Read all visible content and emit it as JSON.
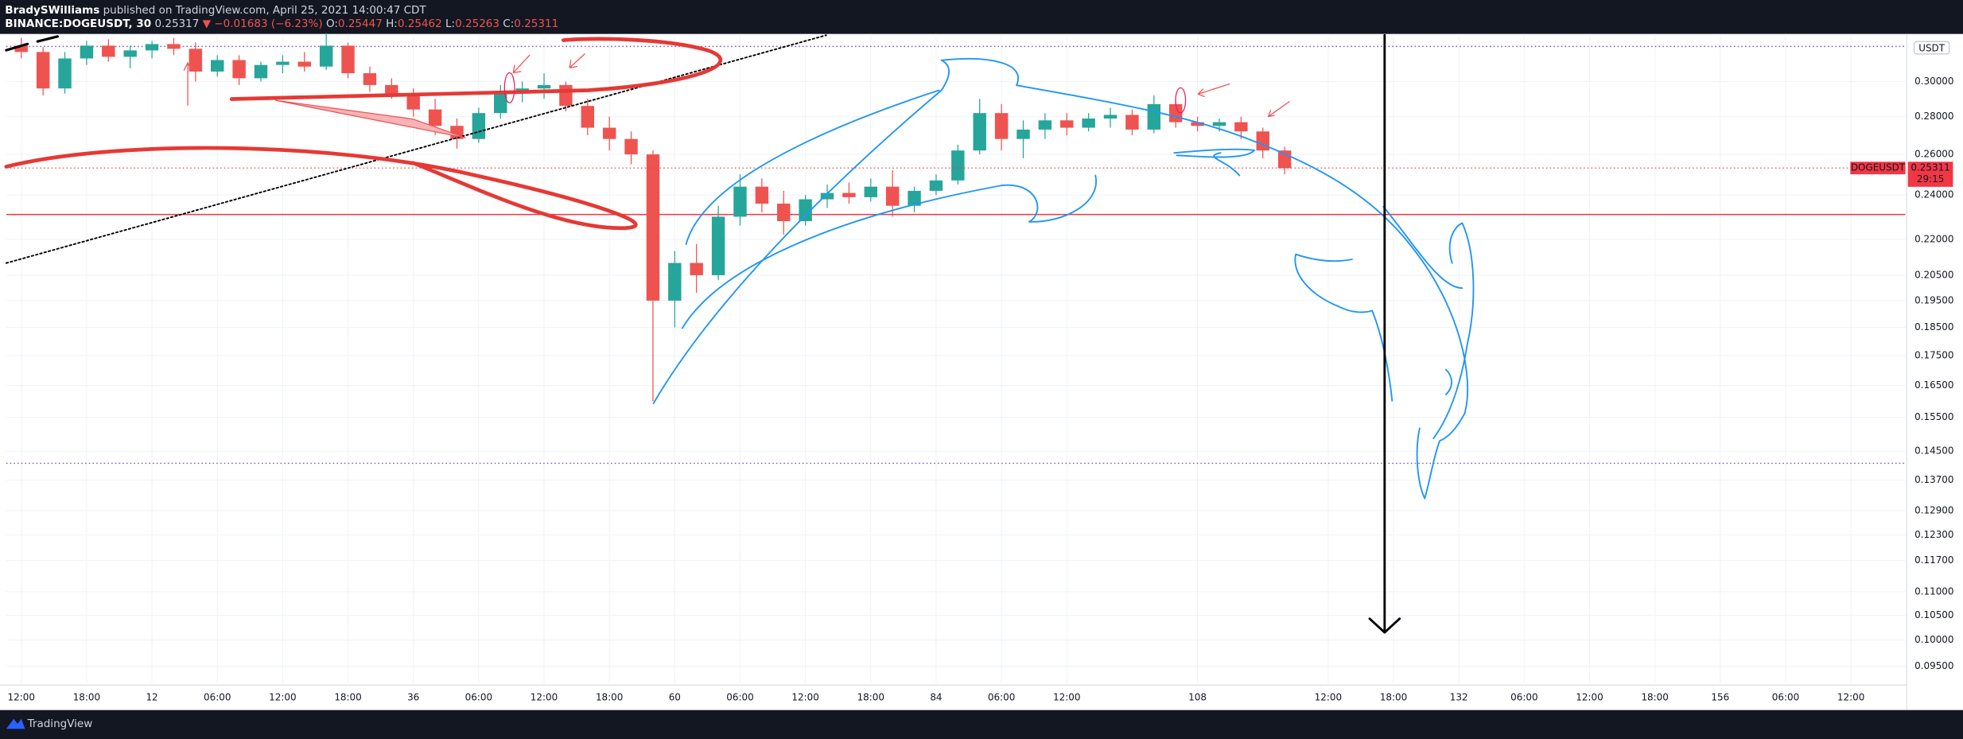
{
  "header": {
    "author": "BradySWilliams",
    "published": "published on TradingView.com, April 25, 2021 14:00:47 CDT",
    "symbol": "BINANCE:DOGEUSDT, 30",
    "price": "0.25317",
    "change": "▼ −0.01683 (−6.23%)",
    "ohlc": [
      {
        "label": "O:",
        "value": "0.25447"
      },
      {
        "label": "H:",
        "value": "0.25462"
      },
      {
        "label": "L:",
        "value": "0.25263"
      },
      {
        "label": "C:",
        "value": "0.25311"
      }
    ]
  },
  "chart_data": {
    "type": "candlestick",
    "log_scale": true,
    "grid": true,
    "up_color": "#26a69a",
    "down_color": "#ef5350",
    "axis_unit": "USDT",
    "x": [
      0,
      2,
      4,
      6,
      8,
      10,
      12,
      14,
      16,
      18,
      20,
      22,
      24,
      26,
      28,
      30,
      32,
      34,
      36,
      38,
      40,
      42,
      44,
      46,
      48,
      50,
      52,
      54,
      56,
      58,
      60,
      62,
      64,
      66,
      68,
      70,
      72,
      74,
      76,
      78,
      80,
      82,
      84,
      86,
      88,
      90,
      92,
      94,
      96,
      98,
      100,
      102,
      104,
      106,
      108,
      110,
      112,
      114,
      116
    ],
    "candles": [
      [
        0.322,
        0.327,
        0.314,
        0.318
      ],
      [
        0.318,
        0.321,
        0.292,
        0.296
      ],
      [
        0.296,
        0.318,
        0.293,
        0.314
      ],
      [
        0.314,
        0.325,
        0.31,
        0.322
      ],
      [
        0.322,
        0.326,
        0.312,
        0.315
      ],
      [
        0.315,
        0.322,
        0.308,
        0.319
      ],
      [
        0.319,
        0.325,
        0.314,
        0.323
      ],
      [
        0.323,
        0.327,
        0.316,
        0.32
      ],
      [
        0.32,
        0.324,
        0.3,
        0.306
      ],
      [
        0.306,
        0.316,
        0.303,
        0.313
      ],
      [
        0.313,
        0.316,
        0.298,
        0.302
      ],
      [
        0.302,
        0.312,
        0.3,
        0.31
      ],
      [
        0.31,
        0.316,
        0.305,
        0.312
      ],
      [
        0.312,
        0.318,
        0.306,
        0.309
      ],
      [
        0.309,
        0.33,
        0.307,
        0.322
      ],
      [
        0.322,
        0.324,
        0.302,
        0.305
      ],
      [
        0.305,
        0.309,
        0.294,
        0.298
      ],
      [
        0.298,
        0.302,
        0.29,
        0.293
      ],
      [
        0.293,
        0.296,
        0.28,
        0.284
      ],
      [
        0.284,
        0.29,
        0.27,
        0.275
      ],
      [
        0.275,
        0.279,
        0.263,
        0.268
      ],
      [
        0.268,
        0.285,
        0.266,
        0.282
      ],
      [
        0.282,
        0.298,
        0.279,
        0.293
      ],
      [
        0.293,
        0.3,
        0.288,
        0.296
      ],
      [
        0.296,
        0.305,
        0.29,
        0.298
      ],
      [
        0.298,
        0.3,
        0.283,
        0.286
      ],
      [
        0.286,
        0.29,
        0.27,
        0.274
      ],
      [
        0.274,
        0.28,
        0.262,
        0.268
      ],
      [
        0.268,
        0.272,
        0.255,
        0.26
      ],
      [
        0.26,
        0.262,
        0.16,
        0.195
      ],
      [
        0.195,
        0.215,
        0.185,
        0.21
      ],
      [
        0.21,
        0.218,
        0.198,
        0.205
      ],
      [
        0.205,
        0.235,
        0.203,
        0.23
      ],
      [
        0.23,
        0.25,
        0.226,
        0.244
      ],
      [
        0.244,
        0.248,
        0.232,
        0.236
      ],
      [
        0.236,
        0.242,
        0.222,
        0.228
      ],
      [
        0.228,
        0.24,
        0.226,
        0.238
      ],
      [
        0.238,
        0.245,
        0.234,
        0.241
      ],
      [
        0.241,
        0.246,
        0.236,
        0.239
      ],
      [
        0.239,
        0.248,
        0.237,
        0.244
      ],
      [
        0.244,
        0.252,
        0.23,
        0.235
      ],
      [
        0.235,
        0.244,
        0.232,
        0.242
      ],
      [
        0.242,
        0.25,
        0.24,
        0.247
      ],
      [
        0.247,
        0.265,
        0.245,
        0.262
      ],
      [
        0.262,
        0.29,
        0.26,
        0.282
      ],
      [
        0.282,
        0.287,
        0.262,
        0.268
      ],
      [
        0.268,
        0.278,
        0.258,
        0.273
      ],
      [
        0.273,
        0.282,
        0.268,
        0.278
      ],
      [
        0.278,
        0.282,
        0.27,
        0.274
      ],
      [
        0.274,
        0.282,
        0.272,
        0.279
      ],
      [
        0.279,
        0.285,
        0.274,
        0.281
      ],
      [
        0.281,
        0.284,
        0.27,
        0.273
      ],
      [
        0.273,
        0.292,
        0.271,
        0.287
      ],
      [
        0.287,
        0.289,
        0.274,
        0.277
      ],
      [
        0.277,
        0.28,
        0.272,
        0.275
      ],
      [
        0.275,
        0.279,
        0.272,
        0.277
      ],
      [
        0.277,
        0.28,
        0.268,
        0.272
      ],
      [
        0.272,
        0.274,
        0.258,
        0.262
      ],
      [
        0.262,
        0.264,
        0.25,
        0.253
      ]
    ],
    "xlim": [
      -1.38,
      173
    ],
    "xticks": [
      {
        "value": 0,
        "label": "12:00"
      },
      {
        "value": 6,
        "label": "18:00"
      },
      12,
      {
        "value": 18,
        "label": "06:00"
      },
      {
        "value": 24,
        "label": "12:00"
      },
      {
        "value": 30,
        "label": "18:00"
      },
      36,
      {
        "value": 42,
        "label": "06:00"
      },
      {
        "value": 48,
        "label": "12:00"
      },
      {
        "value": 54,
        "label": "18:00"
      },
      60,
      {
        "value": 66,
        "label": "06:00"
      },
      {
        "value": 72,
        "label": "12:00"
      },
      {
        "value": 78,
        "label": "18:00"
      },
      84,
      {
        "value": 90,
        "label": "06:00"
      },
      {
        "value": 96,
        "label": "12:00"
      },
      108,
      {
        "value": 120,
        "label": "12:00"
      },
      {
        "value": 126,
        "label": "18:00"
      },
      132,
      {
        "value": 138,
        "label": "06:00"
      },
      {
        "value": 144,
        "label": "12:00"
      },
      {
        "value": 150,
        "label": "18:00"
      },
      156,
      {
        "value": 162,
        "label": "06:00"
      },
      {
        "value": 168,
        "label": "12:00"
      }
    ],
    "ylim": [
      0.092,
      0.3295
    ],
    "yticks": [
      {
        "value": 0.3,
        "label": "0.30000"
      },
      {
        "value": 0.28,
        "label": "0.28000"
      },
      {
        "value": 0.26,
        "label": "0.26000"
      },
      {
        "value": 0.24,
        "label": "0.24000"
      },
      {
        "value": 0.22,
        "label": "0.22000"
      },
      {
        "value": 0.205,
        "label": "0.20500"
      },
      {
        "value": 0.195,
        "label": "0.19500"
      },
      {
        "value": 0.185,
        "label": "0.18500"
      },
      {
        "value": 0.175,
        "label": "0.17500"
      },
      {
        "value": 0.165,
        "label": "0.16500"
      },
      {
        "value": 0.155,
        "label": "0.15500"
      },
      {
        "value": 0.145,
        "label": "0.14500"
      },
      {
        "value": 0.137,
        "label": "0.13700"
      },
      {
        "value": 0.129,
        "label": "0.12900"
      },
      {
        "value": 0.123,
        "label": "0.12300"
      },
      {
        "value": 0.117,
        "label": "0.11700"
      },
      {
        "value": 0.11,
        "label": "0.11000"
      },
      {
        "value": 0.105,
        "label": "0.10500"
      },
      {
        "value": 0.1,
        "label": "0.10000"
      },
      {
        "value": 0.095,
        "label": "0.09500"
      }
    ],
    "hlines": [
      {
        "value": 0.231,
        "color": "#f23645",
        "style": "solid"
      },
      {
        "value": 0.3215,
        "color": "#7e57c2",
        "style": "dotted"
      },
      {
        "value": 0.1416,
        "color": "#7e57c2",
        "style": "dotted"
      }
    ],
    "last_price": {
      "symbol": "DOGEUSDT",
      "value": 0.25311,
      "countdown": "29:15",
      "color": "#f23645"
    }
  },
  "footer": {
    "brand": "TradingView"
  }
}
